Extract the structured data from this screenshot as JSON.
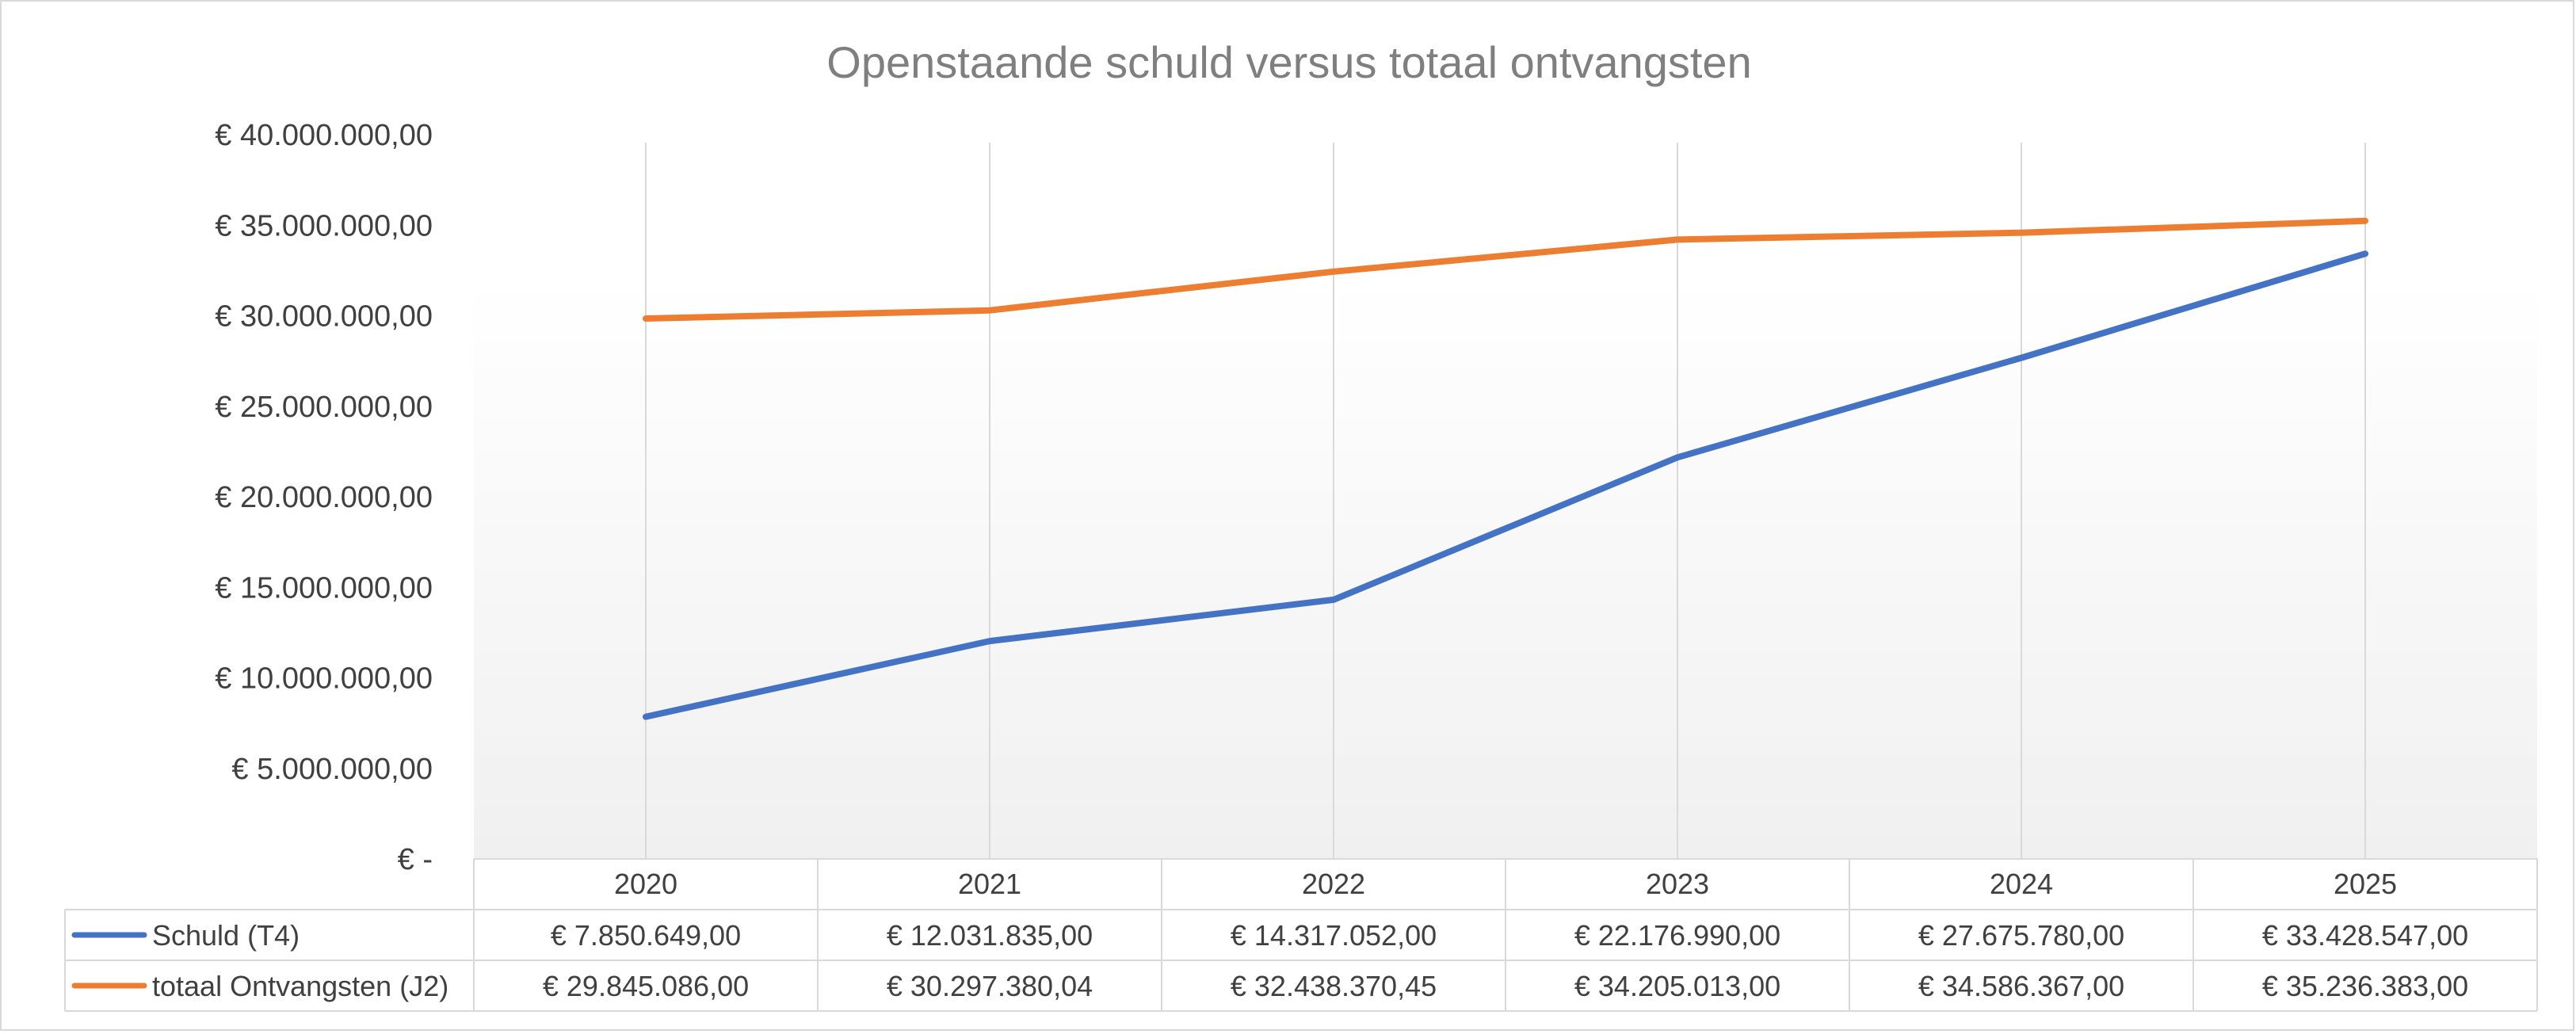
{
  "chart_data": {
    "type": "line",
    "title": "Openstaande schuld versus totaal ontvangsten",
    "categories": [
      "2020",
      "2021",
      "2022",
      "2023",
      "2024",
      "2025"
    ],
    "y_tick_labels": [
      "€ -",
      "€ 5.000.000,00",
      "€ 10.000.000,00",
      "€ 15.000.000,00",
      "€ 20.000.000,00",
      "€ 25.000.000,00",
      "€ 30.000.000,00",
      "€ 35.000.000,00",
      "€ 40.000.000,00"
    ],
    "ylim": [
      0,
      40000000
    ],
    "grid": "vertical",
    "legend": "data-table",
    "series": [
      {
        "name": "Schuld (T4)",
        "color": "#4472c4",
        "values": [
          7850649.0,
          12031835.0,
          14317052.0,
          22176990.0,
          27675780.0,
          33428547.0
        ],
        "labels": [
          "€ 7.850.649,00",
          "€ 12.031.835,00",
          "€ 14.317.052,00",
          "€ 22.176.990,00",
          "€ 27.675.780,00",
          "€ 33.428.547,00"
        ]
      },
      {
        "name": "totaal Ontvangsten (J2)",
        "color": "#ed7d31",
        "values": [
          29845086.0,
          30297380.04,
          32438370.45,
          34205013.0,
          34586367.0,
          35236383.0
        ],
        "labels": [
          "€ 29.845.086,00",
          "€ 30.297.380,04",
          "€ 32.438.370,45",
          "€ 34.205.013,00",
          "€ 34.586.367,00",
          "€ 35.236.383,00"
        ]
      }
    ]
  }
}
